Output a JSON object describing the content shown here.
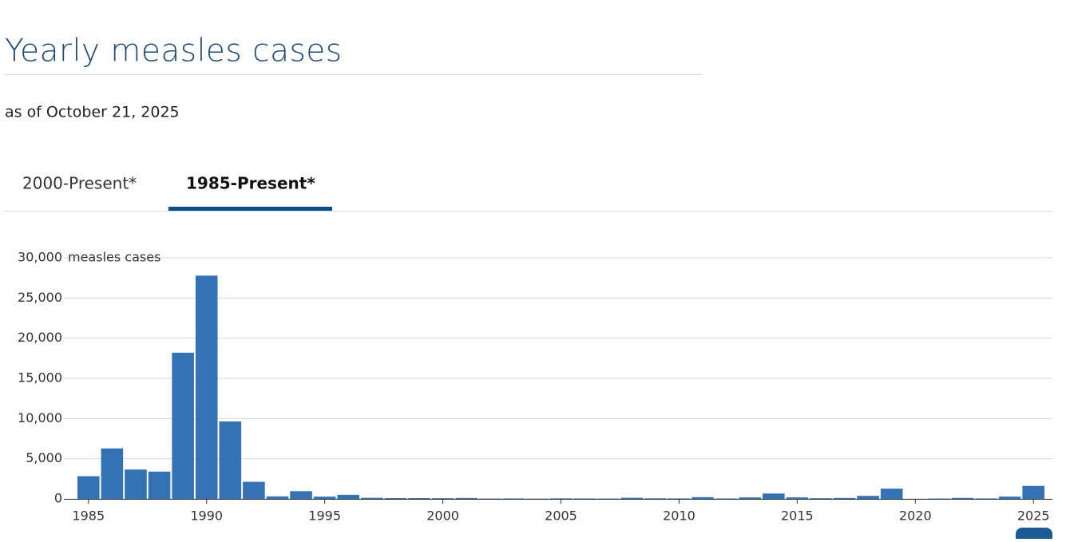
{
  "header": {
    "title": "Yearly measles cases",
    "subtitle": "as of October 21, 2025"
  },
  "tabs": [
    {
      "label": "2000-Present*",
      "active": false
    },
    {
      "label": "1985-Present*",
      "active": true
    }
  ],
  "chart_data": {
    "type": "bar",
    "y_label": "measles cases",
    "color": "#3572b3",
    "x": [
      1985,
      1986,
      1987,
      1988,
      1989,
      1990,
      1991,
      1992,
      1993,
      1994,
      1995,
      1996,
      1997,
      1998,
      1999,
      2000,
      2001,
      2002,
      2003,
      2004,
      2005,
      2006,
      2007,
      2008,
      2009,
      2010,
      2011,
      2012,
      2013,
      2014,
      2015,
      2016,
      2017,
      2018,
      2019,
      2020,
      2021,
      2022,
      2023,
      2024,
      2025
    ],
    "values": [
      2822,
      6282,
      3655,
      3396,
      18193,
      27786,
      9643,
      2126,
      312,
      963,
      281,
      508,
      138,
      100,
      100,
      86,
      116,
      44,
      56,
      37,
      66,
      55,
      43,
      140,
      71,
      63,
      220,
      55,
      187,
      667,
      188,
      86,
      120,
      375,
      1274,
      13,
      49,
      121,
      59,
      285,
      1618
    ],
    "xlim": [
      1984.5,
      2025.5
    ],
    "xticks": [
      1985,
      1990,
      1995,
      2000,
      2005,
      2010,
      2015,
      2020,
      2025
    ],
    "ylim": [
      0,
      30000
    ],
    "yticks": [
      0,
      {
        "value": 5000,
        "label": "5,000"
      },
      {
        "value": 10000,
        "label": "10,000"
      },
      {
        "value": 15000,
        "label": "15,000"
      },
      {
        "value": 20000,
        "label": "20,000"
      },
      {
        "value": 25000,
        "label": "25,000"
      },
      {
        "value": 30000,
        "label": "30,000"
      }
    ],
    "grid": true
  }
}
